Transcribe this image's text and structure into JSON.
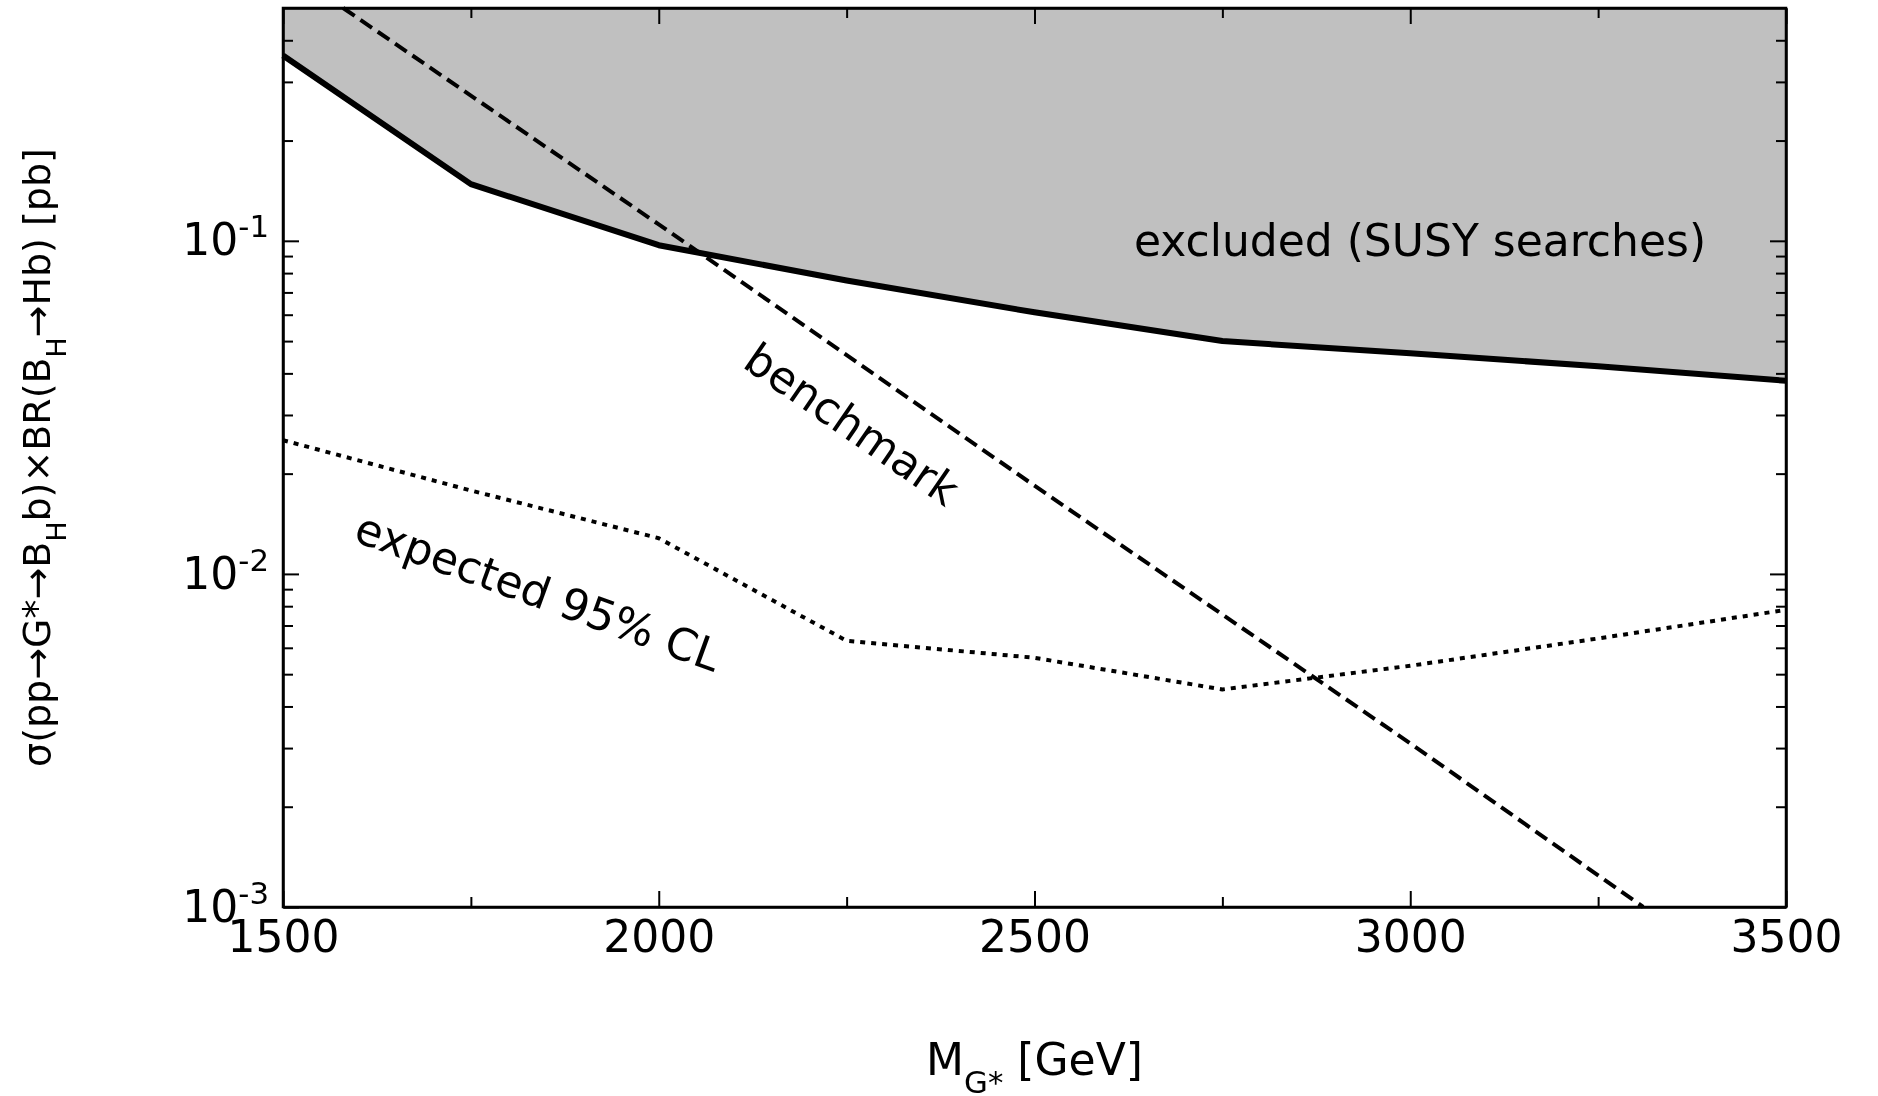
{
  "chart_data": {
    "type": "line",
    "xlabel": "M$_{G*}$ [GeV]",
    "ylabel": "σ(pp→G*→B$_{H}$b)×BR(B$_{H}$→Hb) [pb]",
    "log": "y",
    "xlim": [
      1500,
      3500
    ],
    "ylim": [
      0.001,
      0.5
    ],
    "xticks": [
      1500,
      {
        "value": 1750,
        "label": null
      },
      2000,
      {
        "value": 2250,
        "label": null
      },
      2500,
      {
        "value": 2750,
        "label": null
      },
      3000,
      {
        "value": 3250,
        "label": null
      },
      3500
    ],
    "yticks": [
      {
        "value": 0.001,
        "label": "10$^{-3}$"
      },
      {
        "value": 0.002,
        "label": null
      },
      {
        "value": 0.003,
        "label": null
      },
      {
        "value": 0.004,
        "label": null
      },
      {
        "value": 0.005,
        "label": null
      },
      {
        "value": 0.006,
        "label": null
      },
      {
        "value": 0.007,
        "label": null
      },
      {
        "value": 0.008,
        "label": null
      },
      {
        "value": 0.009,
        "label": null
      },
      {
        "value": 0.01,
        "label": "10$^{-2}$"
      },
      {
        "value": 0.02,
        "label": null
      },
      {
        "value": 0.03,
        "label": null
      },
      {
        "value": 0.04,
        "label": null
      },
      {
        "value": 0.05,
        "label": null
      },
      {
        "value": 0.06,
        "label": null
      },
      {
        "value": 0.07,
        "label": null
      },
      {
        "value": 0.08,
        "label": null
      },
      {
        "value": 0.09,
        "label": null
      },
      {
        "value": 0.1,
        "label": "10$^{-1}$"
      },
      {
        "value": 0.2,
        "label": null
      },
      {
        "value": 0.3,
        "label": null
      },
      {
        "value": 0.4,
        "label": null
      }
    ],
    "grid": false,
    "marker": "none",
    "series": [
      {
        "type": "line",
        "color": "#000000",
        "line_style": "solid",
        "x": [
          1500,
          1750,
          2000,
          2250,
          2500,
          2750,
          3000,
          3250,
          3500
        ],
        "values": [
          0.36,
          0.148,
          0.097,
          0.076,
          0.061,
          0.05,
          0.046,
          0.042,
          0.038
        ],
        "lower": [
          0.36,
          0.148,
          0.097,
          0.076,
          0.061,
          0.05,
          0.046,
          0.042,
          0.038
        ],
        "upper": [
          0.5,
          0.5,
          0.5,
          0.5,
          0.5,
          0.5,
          0.5,
          0.5,
          0.5
        ]
      },
      {
        "type": "line",
        "color": "#000000",
        "line_style": "dashed",
        "x": [
          1580,
          2000,
          2500,
          3000,
          3310
        ],
        "values": [
          0.5,
          0.112,
          0.0184,
          0.0031,
          0.001
        ]
      },
      {
        "type": "line",
        "color": "#000000",
        "line_style": "dotted",
        "x": [
          1500,
          1750,
          2000,
          2250,
          2500,
          2750,
          3000,
          3250,
          3500
        ],
        "values": [
          0.0252,
          0.0178,
          0.0128,
          0.0063,
          0.0056,
          0.0045,
          0.0053,
          0.0064,
          0.0078
        ]
      }
    ],
    "annotations": [
      "excluded (SUSY searches)",
      "benchmark",
      "expected 95% CL"
    ]
  }
}
